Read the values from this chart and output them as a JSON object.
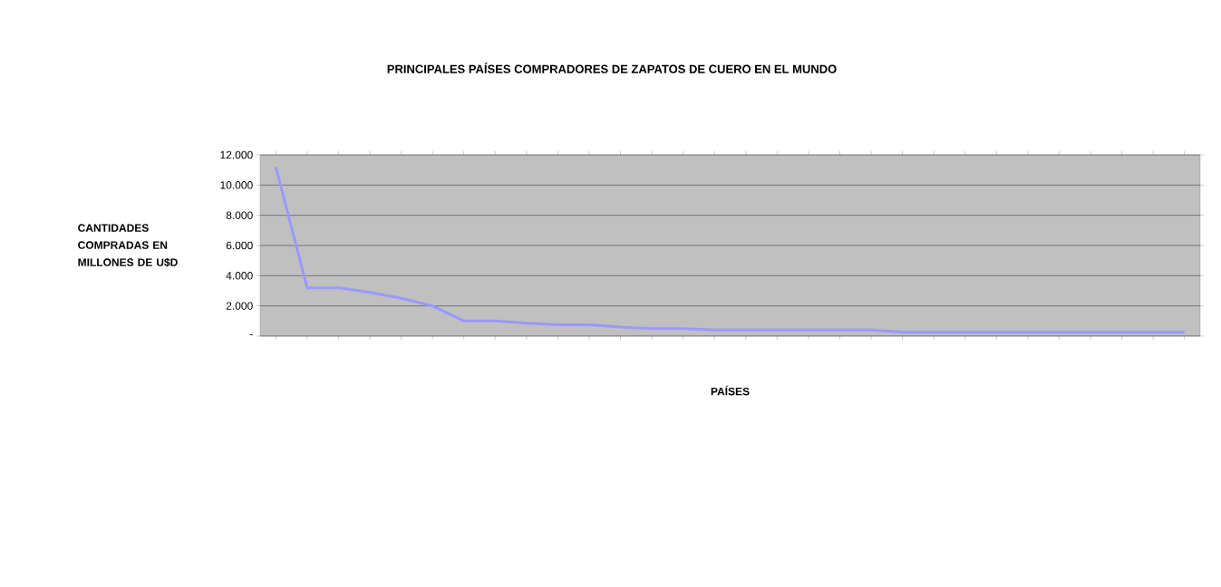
{
  "chart_data": {
    "type": "line",
    "title": "PRINCIPALES PAÍSES COMPRADORES DE ZAPATOS DE CUERO EN EL MUNDO",
    "xlabel": "PAÍSES",
    "ylabel": "CANTIDADES COMPRADAS EN MILLONES DE U$D",
    "categories": [
      null,
      null,
      null,
      null,
      null,
      null,
      null,
      null,
      null,
      null,
      null,
      null,
      null,
      null,
      null,
      null,
      null,
      null,
      null,
      null,
      null,
      null,
      null,
      null,
      null,
      null,
      null,
      null,
      null,
      null
    ],
    "values": [
      11200,
      3200,
      3200,
      2900,
      2500,
      2000,
      1000,
      1000,
      850,
      750,
      750,
      600,
      500,
      500,
      400,
      400,
      400,
      400,
      400,
      400,
      250,
      250,
      250,
      250,
      250,
      250,
      250,
      250,
      250,
      250
    ],
    "color": "#9999ff",
    "ylim": [
      0,
      12000
    ],
    "yticks": [
      {
        "value": 0,
        "label": "-"
      },
      {
        "value": 2000,
        "label": "2.000"
      },
      {
        "value": 4000,
        "label": "4.000"
      },
      {
        "value": 6000,
        "label": "6.000"
      },
      {
        "value": 8000,
        "label": "8.000"
      },
      {
        "value": 10000,
        "label": "10.000"
      },
      {
        "value": 12000,
        "label": "12.000"
      }
    ],
    "grid": "y",
    "marker": "none",
    "line_style": "solid"
  }
}
